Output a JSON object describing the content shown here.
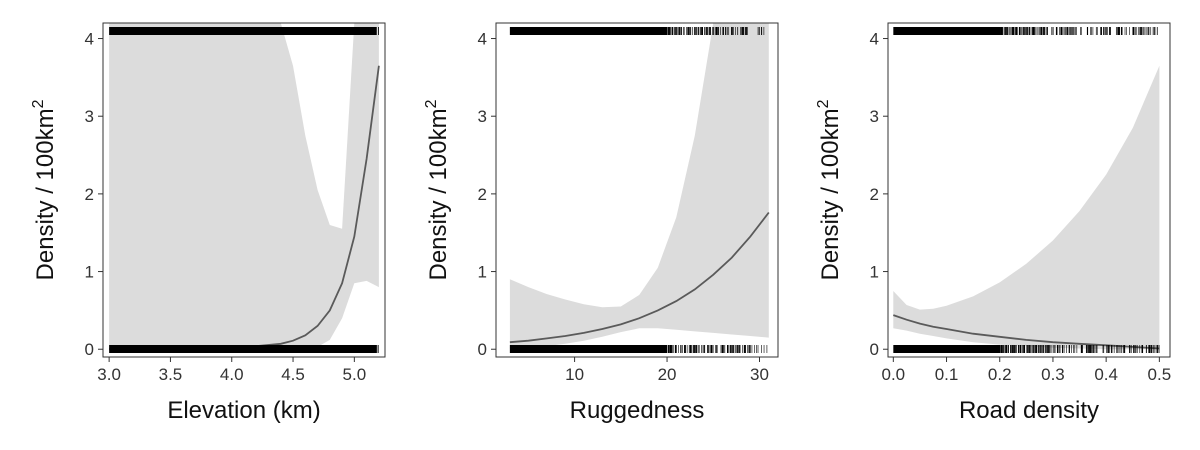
{
  "colors": {
    "ribbon": "#dcdcdc",
    "curve": "#5a5a5a",
    "rug": "#000000",
    "axis": "#333333",
    "background": "#ffffff"
  },
  "chart_data": [
    {
      "type": "line",
      "title": "",
      "xlabel": "Elevation (km)",
      "ylabel": "Density / 100km",
      "ylabel_superscript": "2",
      "xlim": [
        2.95,
        5.25
      ],
      "ylim": [
        -0.1,
        4.2
      ],
      "x_ticks": [
        3.0,
        3.5,
        4.0,
        4.5,
        5.0
      ],
      "x_tick_labels": [
        "3.0",
        "3.5",
        "4.0",
        "4.5",
        "5.0"
      ],
      "y_ticks": [
        0,
        1,
        2,
        3,
        4
      ],
      "y_tick_labels": [
        "0",
        "1",
        "2",
        "3",
        "4"
      ],
      "grid": false,
      "legend": "none",
      "series": [
        {
          "kind": "fit",
          "x": [
            3.0,
            3.2,
            3.4,
            3.6,
            3.8,
            4.0,
            4.2,
            4.4,
            4.5,
            4.6,
            4.7,
            4.8,
            4.9,
            5.0,
            5.1,
            5.2
          ],
          "y": [
            0.0,
            0.0,
            0.0,
            0.01,
            0.01,
            0.02,
            0.04,
            0.07,
            0.11,
            0.18,
            0.3,
            0.5,
            0.85,
            1.45,
            2.45,
            3.65
          ],
          "lower": [
            0.0,
            0.0,
            0.0,
            0.0,
            0.0,
            0.0,
            0.0,
            0.0,
            0.0,
            0.01,
            0.03,
            0.12,
            0.4,
            0.85,
            0.88,
            0.8
          ],
          "upper": [
            4.2,
            4.2,
            4.2,
            4.2,
            4.2,
            4.2,
            4.2,
            4.2,
            3.65,
            2.75,
            2.05,
            1.6,
            1.55,
            4.2,
            4.2,
            4.2
          ]
        }
      ],
      "rug": {
        "range": [
          3.0,
          5.2
        ],
        "solid_from": 3.0,
        "solid_to": 5.18
      }
    },
    {
      "type": "line",
      "title": "",
      "xlabel": "Ruggedness",
      "ylabel": "Density / 100km",
      "ylabel_superscript": "2",
      "xlim": [
        1.5,
        32
      ],
      "ylim": [
        -0.1,
        4.2
      ],
      "x_ticks": [
        10,
        20,
        30
      ],
      "x_tick_labels": [
        "10",
        "20",
        "30"
      ],
      "y_ticks": [
        0,
        1,
        2,
        3,
        4
      ],
      "y_tick_labels": [
        "0",
        "1",
        "2",
        "3",
        "4"
      ],
      "grid": false,
      "legend": "none",
      "series": [
        {
          "kind": "fit",
          "x": [
            3,
            5,
            7,
            9,
            11,
            13,
            15,
            17,
            19,
            21,
            23,
            25,
            27,
            29,
            31
          ],
          "y": [
            0.09,
            0.11,
            0.14,
            0.17,
            0.21,
            0.26,
            0.32,
            0.4,
            0.5,
            0.62,
            0.77,
            0.96,
            1.18,
            1.45,
            1.76
          ],
          "lower": [
            0.01,
            0.02,
            0.04,
            0.07,
            0.11,
            0.16,
            0.22,
            0.27,
            0.27,
            0.25,
            0.23,
            0.21,
            0.19,
            0.17,
            0.15
          ],
          "upper": [
            0.9,
            0.8,
            0.71,
            0.64,
            0.58,
            0.54,
            0.55,
            0.7,
            1.05,
            1.7,
            2.75,
            4.2,
            4.2,
            4.2,
            4.2
          ]
        }
      ],
      "rug": {
        "range": [
          3,
          31
        ],
        "solid_from": 3,
        "solid_to": 20
      }
    },
    {
      "type": "line",
      "title": "",
      "xlabel": "Road density",
      "ylabel": "Density / 100km",
      "ylabel_superscript": "2",
      "xlim": [
        -0.01,
        0.52
      ],
      "ylim": [
        -0.1,
        4.2
      ],
      "x_ticks": [
        0.0,
        0.1,
        0.2,
        0.3,
        0.4,
        0.5
      ],
      "x_tick_labels": [
        "0.0",
        "0.1",
        "0.2",
        "0.3",
        "0.4",
        "0.5"
      ],
      "y_ticks": [
        0,
        1,
        2,
        3,
        4
      ],
      "y_tick_labels": [
        "0",
        "1",
        "2",
        "3",
        "4"
      ],
      "grid": false,
      "legend": "none",
      "series": [
        {
          "kind": "fit",
          "x": [
            0.0,
            0.025,
            0.05,
            0.075,
            0.1,
            0.15,
            0.2,
            0.25,
            0.3,
            0.35,
            0.4,
            0.45,
            0.5
          ],
          "y": [
            0.44,
            0.38,
            0.33,
            0.29,
            0.26,
            0.2,
            0.16,
            0.12,
            0.09,
            0.07,
            0.05,
            0.03,
            0.01
          ],
          "lower": [
            0.27,
            0.24,
            0.2,
            0.17,
            0.14,
            0.09,
            0.06,
            0.04,
            0.02,
            0.01,
            0.0,
            0.0,
            0.0
          ],
          "upper": [
            0.75,
            0.57,
            0.51,
            0.52,
            0.56,
            0.68,
            0.86,
            1.1,
            1.4,
            1.78,
            2.25,
            2.85,
            3.65
          ]
        }
      ],
      "rug": {
        "range": [
          0.0,
          0.5
        ],
        "solid_from": 0.0,
        "solid_to": 0.2
      }
    }
  ]
}
